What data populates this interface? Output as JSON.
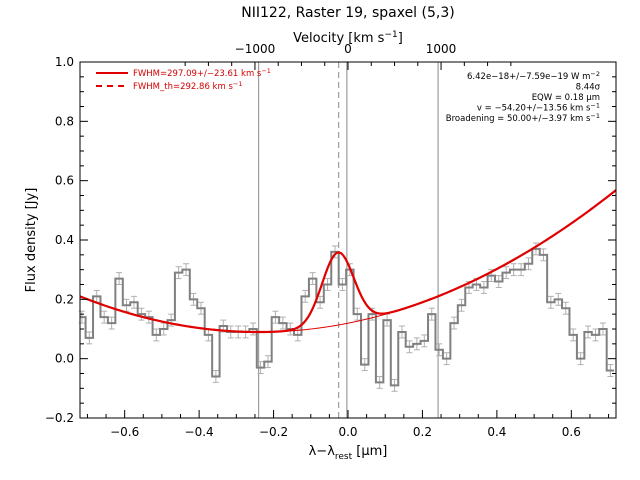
{
  "chart_data": {
    "type": "line",
    "title": "NII122, Raster 19, spaxel (5,3)",
    "xlabel": "λ−λ_rest [μm]",
    "xlabel_parts": {
      "base": "λ−λ",
      "sub": "rest",
      "unit": " [μm]"
    },
    "ylabel": "Flux density [Jy]",
    "top_axis_label": "Velocity [km s⁻¹]",
    "top_axis_label_parts": {
      "base": "Velocity [km s",
      "sup": "−1",
      "end": "]"
    },
    "xlim": [
      -0.72,
      0.72
    ],
    "ylim": [
      -0.2,
      1.0
    ],
    "xticks": [
      -0.6,
      -0.4,
      -0.2,
      0.0,
      0.2,
      0.4,
      0.6
    ],
    "xtick_labels": [
      "−0.6",
      "−0.4",
      "−0.2",
      "0.0",
      "0.2",
      "0.4",
      "0.6"
    ],
    "yticks": [
      -0.2,
      0.0,
      0.2,
      0.4,
      0.6,
      0.8,
      1.0
    ],
    "ytick_labels": [
      "−0.2",
      "0.0",
      "0.2",
      "0.4",
      "0.6",
      "0.8",
      "1.0"
    ],
    "top_ticks_um": [
      -0.25,
      0.0,
      0.25
    ],
    "top_tick_labels": [
      "−1000",
      "0",
      "1000"
    ],
    "vertical_lines": [
      -0.24,
      -0.003,
      0.242
    ],
    "dashed_line": -0.025,
    "series": [
      {
        "name": "data",
        "color": "#808080",
        "x": [
          -0.715,
          -0.695,
          -0.675,
          -0.655,
          -0.635,
          -0.615,
          -0.595,
          -0.575,
          -0.555,
          -0.535,
          -0.515,
          -0.495,
          -0.475,
          -0.455,
          -0.435,
          -0.415,
          -0.395,
          -0.375,
          -0.355,
          -0.335,
          -0.315,
          -0.295,
          -0.275,
          -0.255,
          -0.235,
          -0.215,
          -0.195,
          -0.175,
          -0.155,
          -0.135,
          -0.115,
          -0.095,
          -0.075,
          -0.055,
          -0.035,
          -0.015,
          0.005,
          0.025,
          0.045,
          0.065,
          0.085,
          0.105,
          0.125,
          0.145,
          0.165,
          0.185,
          0.205,
          0.225,
          0.245,
          0.265,
          0.285,
          0.305,
          0.325,
          0.345,
          0.365,
          0.385,
          0.405,
          0.425,
          0.445,
          0.465,
          0.485,
          0.505,
          0.525,
          0.545,
          0.565,
          0.585,
          0.605,
          0.625,
          0.645,
          0.665,
          0.685,
          0.705
        ],
        "values": [
          0.14,
          0.07,
          0.21,
          0.14,
          0.12,
          0.27,
          0.18,
          0.19,
          0.15,
          0.14,
          0.08,
          0.1,
          0.13,
          0.29,
          0.3,
          0.2,
          0.17,
          0.08,
          -0.06,
          0.11,
          0.09,
          0.09,
          0.09,
          0.1,
          -0.03,
          -0.01,
          0.14,
          0.12,
          0.1,
          0.08,
          0.21,
          0.27,
          0.19,
          0.25,
          0.36,
          0.25,
          0.3,
          0.15,
          -0.02,
          0.15,
          -0.08,
          0.13,
          -0.09,
          0.09,
          0.04,
          0.05,
          0.06,
          0.15,
          0.03,
          0.0,
          0.12,
          0.18,
          0.24,
          0.25,
          0.24,
          0.28,
          0.26,
          0.29,
          0.3,
          0.3,
          0.32,
          0.37,
          0.35,
          0.19,
          0.2,
          0.17,
          0.08,
          0.0,
          0.09,
          0.08,
          0.1,
          -0.04
        ],
        "errors": [
          0.02,
          0.02,
          0.02,
          0.02,
          0.02,
          0.02,
          0.02,
          0.02,
          0.02,
          0.02,
          0.02,
          0.02,
          0.02,
          0.02,
          0.02,
          0.02,
          0.02,
          0.02,
          0.02,
          0.02,
          0.02,
          0.02,
          0.02,
          0.02,
          0.02,
          0.02,
          0.02,
          0.02,
          0.02,
          0.02,
          0.02,
          0.02,
          0.02,
          0.02,
          0.02,
          0.02,
          0.02,
          0.02,
          0.02,
          0.02,
          0.02,
          0.02,
          0.02,
          0.02,
          0.02,
          0.02,
          0.02,
          0.02,
          0.02,
          0.02,
          0.02,
          0.02,
          0.02,
          0.02,
          0.02,
          0.02,
          0.02,
          0.02,
          0.02,
          0.02,
          0.02,
          0.02,
          0.02,
          0.02,
          0.02,
          0.02,
          0.02,
          0.02,
          0.02,
          0.02,
          0.02,
          0.02
        ]
      },
      {
        "name": "FWHM=297.09+/−23.61 km s⁻¹",
        "color": "#e00000",
        "kind": "fit",
        "continuum_poly": {
          "center": -0.22,
          "base": 0.09,
          "quad": 0.52,
          "lin": 0.02
        },
        "gaussian": {
          "amplitude": 0.245,
          "center": -0.027,
          "sigma": 0.0425
        }
      },
      {
        "name": "FWHM_th=292.86 km s⁻¹",
        "color": "#e00000",
        "kind": "legend-only-dashed"
      }
    ],
    "legend": {
      "placement": "top-left",
      "entries": [
        {
          "text": "FWHM=297.09+/−23.61 km s",
          "sup": "−1",
          "style": "solid"
        },
        {
          "text": "FWHM_th=292.86 km s",
          "sup": "−1",
          "style": "dashed"
        }
      ]
    },
    "annotations": [
      {
        "text": "6.42e−18+/−7.59e−19 W m",
        "sup": "−2"
      },
      {
        "text": "8.44σ",
        "sup": ""
      },
      {
        "text": "EQW = 0.18 μm",
        "sup": ""
      },
      {
        "text": "v = −54.20+/−13.56 km s",
        "sup": "−1"
      },
      {
        "text": "Broadening = 50.00+/−3.97 km s",
        "sup": "−1"
      }
    ]
  }
}
